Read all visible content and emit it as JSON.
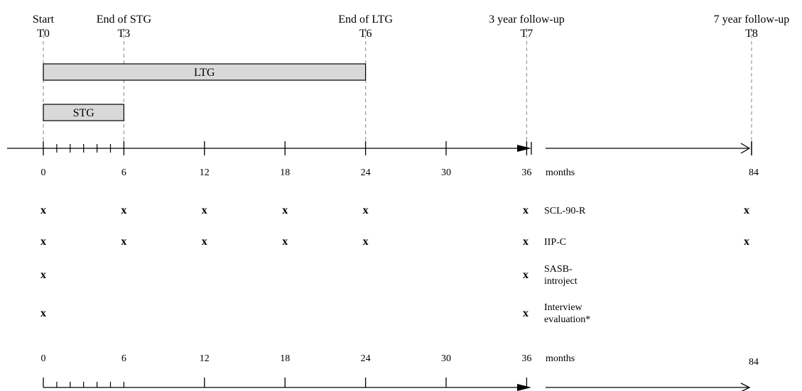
{
  "milestones": [
    {
      "label": "Start",
      "tp": "T0",
      "month": 0
    },
    {
      "label": "End of STG",
      "tp": "T3",
      "month": 6
    },
    {
      "label": "End of LTG",
      "tp": "T6",
      "month": 24
    },
    {
      "label": "3 year follow-up",
      "tp": "T7",
      "month": 36
    },
    {
      "label": "7 year follow-up",
      "tp": "T8",
      "month": 84
    }
  ],
  "bars": [
    {
      "label": "LTG",
      "start_month": 0,
      "end_month": 24
    },
    {
      "label": "STG",
      "start_month": 0,
      "end_month": 6
    }
  ],
  "axis": {
    "ticks": [
      "0",
      "6",
      "12",
      "18",
      "24",
      "30",
      "36"
    ],
    "far_tick": "84",
    "unit": "months"
  },
  "measures": [
    {
      "name": "SCL-90-R",
      "months": [
        0,
        6,
        12,
        18,
        24,
        36,
        84
      ]
    },
    {
      "name": "IIP-C",
      "months": [
        0,
        6,
        12,
        18,
        24,
        36,
        84
      ]
    },
    {
      "name": "SASB-\nintroject",
      "months": [
        0,
        36
      ]
    },
    {
      "name": "Interview\nevaluation*",
      "months": [
        0,
        36
      ]
    }
  ],
  "mark": "x"
}
